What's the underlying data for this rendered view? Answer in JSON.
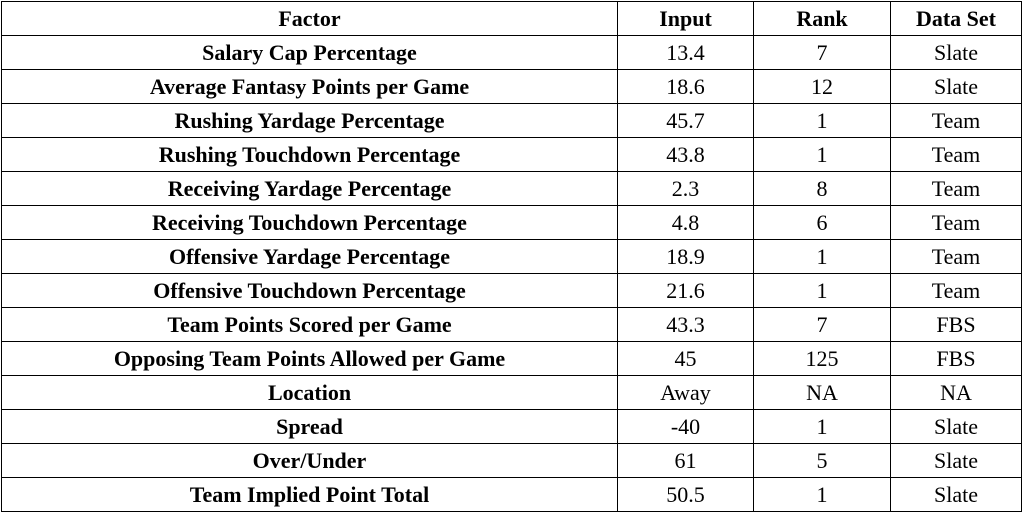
{
  "table": {
    "headers": [
      "Factor",
      "Input",
      "Rank",
      "Data Set"
    ],
    "rows": [
      {
        "factor": "Salary Cap Percentage",
        "input": "13.4",
        "rank": "7",
        "data_set": "Slate"
      },
      {
        "factor": "Average Fantasy Points per Game",
        "input": "18.6",
        "rank": "12",
        "data_set": "Slate"
      },
      {
        "factor": "Rushing Yardage Percentage",
        "input": "45.7",
        "rank": "1",
        "data_set": "Team"
      },
      {
        "factor": "Rushing Touchdown Percentage",
        "input": "43.8",
        "rank": "1",
        "data_set": "Team"
      },
      {
        "factor": "Receiving Yardage Percentage",
        "input": "2.3",
        "rank": "8",
        "data_set": "Team"
      },
      {
        "factor": "Receiving Touchdown Percentage",
        "input": "4.8",
        "rank": "6",
        "data_set": "Team"
      },
      {
        "factor": "Offensive Yardage Percentage",
        "input": "18.9",
        "rank": "1",
        "data_set": "Team"
      },
      {
        "factor": "Offensive Touchdown Percentage",
        "input": "21.6",
        "rank": "1",
        "data_set": "Team"
      },
      {
        "factor": "Team Points Scored per Game",
        "input": "43.3",
        "rank": "7",
        "data_set": "FBS"
      },
      {
        "factor": "Opposing Team Points Allowed per Game",
        "input": "45",
        "rank": "125",
        "data_set": "FBS"
      },
      {
        "factor": "Location",
        "input": "Away",
        "rank": "NA",
        "data_set": "NA"
      },
      {
        "factor": "Spread",
        "input": "-40",
        "rank": "1",
        "data_set": "Slate"
      },
      {
        "factor": "Over/Under",
        "input": "61",
        "rank": "5",
        "data_set": "Slate"
      },
      {
        "factor": "Team Implied Point Total",
        "input": "50.5",
        "rank": "1",
        "data_set": "Slate"
      }
    ]
  }
}
